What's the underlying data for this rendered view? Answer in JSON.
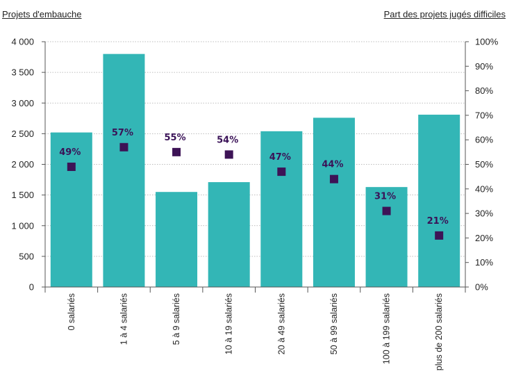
{
  "chart_data": {
    "type": "bar",
    "left_axis_title": "Projets d'embauche",
    "right_axis_title": "Part des projets jugés difficiles",
    "categories": [
      "0 salariés",
      "1 à 4 salariés",
      "5 à 9 salariés",
      "10 à 19 salariés",
      "20 à 49 salariés",
      "50 à 99 salariés",
      "100 à 199 salariés",
      "plus de 200 salariés"
    ],
    "series": [
      {
        "axis": "left",
        "type": "bar",
        "color": "#33b6b6",
        "values": [
          2520,
          3800,
          1550,
          1710,
          2540,
          2760,
          1630,
          2810
        ]
      },
      {
        "axis": "right",
        "type": "scatter",
        "marker": "square",
        "color": "#3d1356",
        "values": [
          49,
          57,
          55,
          54,
          47,
          44,
          31,
          21
        ],
        "labels": [
          "49%",
          "57%",
          "55%",
          "54%",
          "47%",
          "44%",
          "31%",
          "21%"
        ]
      }
    ],
    "y_left": {
      "min": 0,
      "max": 4000,
      "step": 500,
      "tick_labels": [
        "0",
        "500",
        "1 000",
        "1 500",
        "2 000",
        "2 500",
        "3 000",
        "3 500",
        "4 000"
      ]
    },
    "y_right": {
      "min": 0,
      "max": 100,
      "step": 10,
      "tick_labels": [
        "0%",
        "10%",
        "20%",
        "30%",
        "40%",
        "50%",
        "60%",
        "70%",
        "80%",
        "90%",
        "100%"
      ]
    },
    "grid": true,
    "legend": "none"
  }
}
